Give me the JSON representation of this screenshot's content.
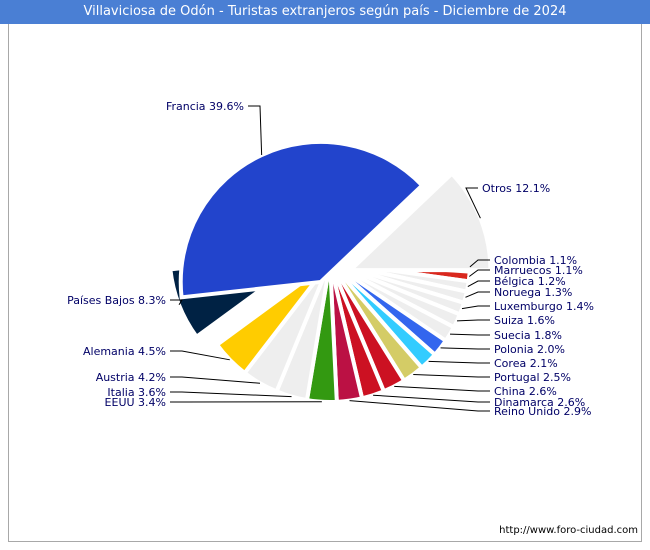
{
  "colors": {
    "title_bg": "#4a7fd4",
    "border": "#a8a8a8",
    "label_text": "#000066"
  },
  "chart_data": {
    "type": "pie",
    "title": "Villaviciosa de Odón - Turistas extranjeros según país - Diciembre de 2024",
    "start_angle_deg": 0,
    "direction": "clockwise",
    "slices": [
      {
        "label": "Colombia",
        "display": "Colombia 1.1%",
        "value": 1.1,
        "color": "#1f3a9e"
      },
      {
        "label": "Marruecos",
        "display": "Marruecos 1.1%",
        "value": 1.1,
        "color": "#d9281e"
      },
      {
        "label": "Bélgica",
        "display": "Bélgica 1.2%",
        "value": 1.2,
        "color": "#eeeeee"
      },
      {
        "label": "Noruega",
        "display": "Noruega 1.3%",
        "value": 1.3,
        "color": "#eeeeee"
      },
      {
        "label": "Luxemburgo",
        "display": "Luxemburgo 1.4%",
        "value": 1.4,
        "color": "#eeeeee"
      },
      {
        "label": "Suiza",
        "display": "Suiza 1.6%",
        "value": 1.6,
        "color": "#eeeeee"
      },
      {
        "label": "Suecia",
        "display": "Suecia 1.8%",
        "value": 1.8,
        "color": "#eeeeee"
      },
      {
        "label": "Polonia",
        "display": "Polonia 2.0%",
        "value": 2.0,
        "color": "#3366ee"
      },
      {
        "label": "Corea",
        "display": "Corea 2.1%",
        "value": 2.1,
        "color": "#33ccff"
      },
      {
        "label": "Portugal",
        "display": "Portugal 2.5%",
        "value": 2.5,
        "color": "#d4cc66"
      },
      {
        "label": "China",
        "display": "China 2.6%",
        "value": 2.6,
        "color": "#cc1122"
      },
      {
        "label": "Dinamarca",
        "display": "Dinamarca 2.6%",
        "value": 2.6,
        "color": "#cc1122"
      },
      {
        "label": "Reino Unido",
        "display": "Reino Unido 2.9%",
        "value": 2.9,
        "color": "#bb1144"
      },
      {
        "label": "EEUU",
        "display": "EEUU 3.4%",
        "value": 3.4,
        "color": "#339911"
      },
      {
        "label": "Italia",
        "display": "Italia 3.6%",
        "value": 3.6,
        "color": "#eeeeee"
      },
      {
        "label": "Austria",
        "display": "Austria 4.2%",
        "value": 4.2,
        "color": "#eeeeee"
      },
      {
        "label": "Alemania",
        "display": "Alemania 4.5%",
        "value": 4.5,
        "color": "#ffcc00"
      },
      {
        "label": "Países Bajos",
        "display": "Países Bajos 8.3%",
        "value": 8.3,
        "color": "#002244"
      },
      {
        "label": "Francia",
        "display": "Francia 39.6%",
        "value": 39.6,
        "color": "#2244cc"
      },
      {
        "label": "Otros",
        "display": "Otros 12.1%",
        "value": 12.1,
        "color": "#eeeeee"
      }
    ],
    "exploded": [
      "Francia",
      "Países Bajos",
      "Otros"
    ],
    "label_side": {
      "Colombia": "right",
      "Marruecos": "right",
      "Bélgica": "right",
      "Noruega": "right",
      "Luxemburgo": "right",
      "Suiza": "right",
      "Suecia": "right",
      "Polonia": "right",
      "Corea": "right",
      "Portugal": "right",
      "China": "right",
      "Dinamarca": "right",
      "Reino Unido": "right",
      "EEUU": "left",
      "Italia": "left",
      "Austria": "left",
      "Alemania": "left",
      "Países Bajos": "left",
      "Francia": "left",
      "Otros": "right"
    }
  },
  "footer": {
    "credit": "http://www.foro-ciudad.com"
  }
}
